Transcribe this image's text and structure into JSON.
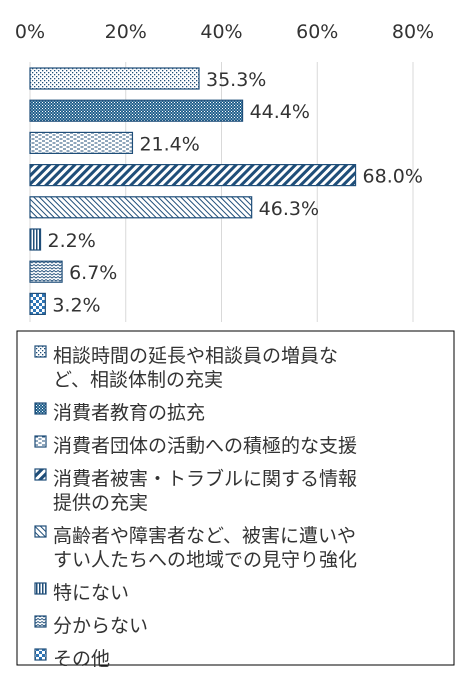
{
  "chart_data": {
    "type": "bar",
    "orientation": "horizontal",
    "xlim": [
      0,
      80
    ],
    "x_ticks": [
      "0%",
      "20%",
      "40%",
      "60%",
      "80%"
    ],
    "grid": true,
    "legend_position": "bottom",
    "categories": [
      "相談時間の延長や相談員の増員など、相談体制の充実",
      "消費者教育の拡充",
      "消費者団体の活動への積極的な支援",
      "消費者被害・トラブルに関する情報提供の充実",
      "高齢者や障害者など、被害に遭いやすい人たちへの地域での見守り強化",
      "特にない",
      "分からない",
      "その他"
    ],
    "values": [
      35.3,
      44.4,
      21.4,
      68.0,
      46.3,
      2.2,
      6.7,
      3.2
    ],
    "labels": [
      "35.3%",
      "44.4%",
      "21.4%",
      "68.0%",
      "46.3%",
      "2.2%",
      "6.7%",
      "3.2%"
    ],
    "legend_lines": [
      [
        "相談時間の延長や相談員の増員な",
        "ど、相談体制の充実"
      ],
      [
        "消費者教育の拡充"
      ],
      [
        "消費者団体の活動への積極的な支援"
      ],
      [
        "消費者被害・トラブルに関する情報",
        "提供の充実"
      ],
      [
        "高齢者や障害者など、被害に遭いや",
        "すい人たちへの地域での見守り強化"
      ],
      [
        "特にない"
      ],
      [
        "分からない"
      ],
      [
        "その他"
      ]
    ]
  }
}
